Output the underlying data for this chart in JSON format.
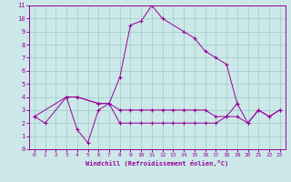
{
  "xlabel": "Windchill (Refroidissement éolien,°C)",
  "bg_color": "#cce8e8",
  "line_color": "#990099",
  "grid_color": "#99cccc",
  "xlim": [
    -0.5,
    23.5
  ],
  "ylim": [
    0,
    11
  ],
  "xticks": [
    0,
    1,
    2,
    3,
    4,
    5,
    6,
    7,
    8,
    9,
    10,
    11,
    12,
    13,
    14,
    15,
    16,
    17,
    18,
    19,
    20,
    21,
    22,
    23
  ],
  "yticks": [
    0,
    1,
    2,
    3,
    4,
    5,
    6,
    7,
    8,
    9,
    10,
    11
  ],
  "series": [
    {
      "x": [
        0,
        1,
        3,
        4,
        6,
        7,
        8
      ],
      "y": [
        2.5,
        2.0,
        4.0,
        4.0,
        3.5,
        3.5,
        2.0
      ]
    },
    {
      "x": [
        3,
        4,
        5,
        6,
        7,
        8,
        9,
        10,
        11,
        12,
        14,
        15,
        16,
        17,
        18,
        19
      ],
      "y": [
        4.0,
        1.5,
        0.5,
        3.0,
        3.5,
        5.5,
        9.5,
        9.8,
        11.0,
        10.0,
        9.0,
        8.5,
        7.5,
        7.0,
        6.5,
        3.5
      ]
    },
    {
      "x": [
        0,
        3,
        4,
        6,
        7,
        8,
        9,
        10,
        11,
        12,
        13,
        14,
        15,
        16,
        17,
        18,
        19,
        20,
        21,
        22,
        23
      ],
      "y": [
        2.5,
        4.0,
        4.0,
        3.5,
        3.5,
        3.0,
        3.0,
        3.0,
        3.0,
        3.0,
        3.0,
        3.0,
        3.0,
        3.0,
        2.5,
        2.5,
        3.5,
        2.0,
        3.0,
        2.5,
        3.0
      ]
    },
    {
      "x": [
        8,
        9,
        10,
        11,
        12,
        13,
        14,
        15,
        16,
        17,
        18,
        19,
        20,
        21,
        22,
        23
      ],
      "y": [
        2.0,
        2.0,
        2.0,
        2.0,
        2.0,
        2.0,
        2.0,
        2.0,
        2.0,
        2.0,
        2.5,
        2.5,
        2.0,
        3.0,
        2.5,
        3.0
      ]
    }
  ]
}
